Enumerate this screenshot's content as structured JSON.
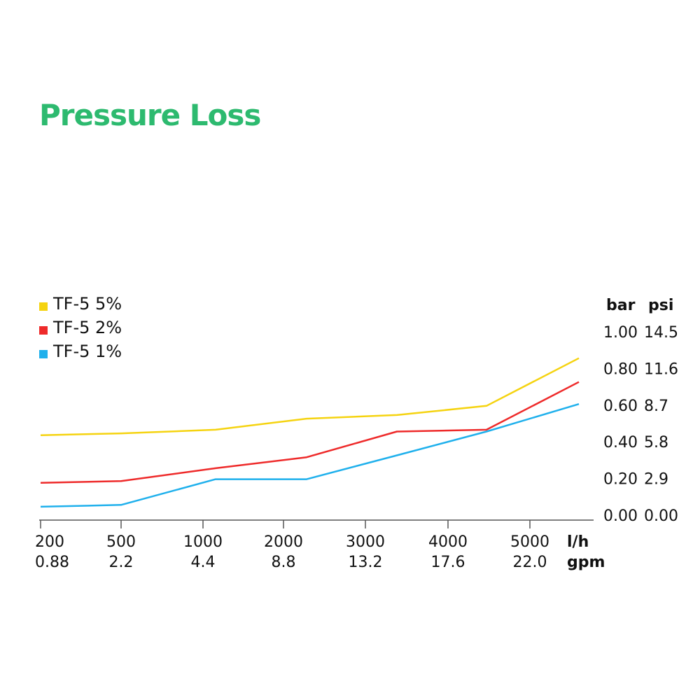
{
  "page": {
    "title": "Pressure Loss",
    "title_color": "#2dba6f"
  },
  "chart_data": {
    "type": "line",
    "title": "Pressure Loss",
    "x": [
      200,
      500,
      1000,
      2000,
      3000,
      4000,
      5000
    ],
    "x_tick_labels_top": [
      "200",
      "500",
      "1000",
      "2000",
      "3000",
      "4000",
      "5000"
    ],
    "x_tick_labels_bottom": [
      "0.88",
      "2.2",
      "4.4",
      "8.8",
      "13.2",
      "17.6",
      "22.0"
    ],
    "x_unit_top": "l/h",
    "x_unit_bottom": "gpm",
    "y_unit_left": "bar",
    "y_unit_right": "psi",
    "y_ticks": [
      0.0,
      0.2,
      0.4,
      0.6,
      0.8,
      1.0
    ],
    "y_tick_labels_bar": [
      "0.00",
      "0.20",
      "0.40",
      "0.60",
      "0.80",
      "1.00"
    ],
    "y_tick_labels_psi": [
      "0.00",
      "2.9",
      "5.8",
      "8.7",
      "11.6",
      "14.5"
    ],
    "ylim": [
      0,
      1.0
    ],
    "grid": false,
    "legend_position": "top-left",
    "series": [
      {
        "name": "TF-5 5%",
        "color": "#f5d310",
        "points": [
          [
            200,
            0.44
          ],
          [
            500,
            0.45
          ],
          [
            1000,
            0.47
          ],
          [
            2000,
            0.53
          ],
          [
            3000,
            0.55
          ],
          [
            4000,
            0.6
          ],
          [
            5000,
            0.86
          ]
        ]
      },
      {
        "name": "TF-5 2%",
        "color": "#ee2a2a",
        "points": [
          [
            200,
            0.18
          ],
          [
            500,
            0.19
          ],
          [
            1000,
            0.26
          ],
          [
            2000,
            0.32
          ],
          [
            3000,
            0.46
          ],
          [
            4000,
            0.47
          ],
          [
            5000,
            0.73
          ]
        ]
      },
      {
        "name": "TF-5 1%",
        "color": "#1fb0ec",
        "points": [
          [
            200,
            0.05
          ],
          [
            500,
            0.06
          ],
          [
            1000,
            0.2
          ],
          [
            2000,
            0.2
          ],
          [
            3000,
            0.33
          ],
          [
            4000,
            0.46
          ],
          [
            5000,
            0.61
          ]
        ]
      }
    ]
  }
}
